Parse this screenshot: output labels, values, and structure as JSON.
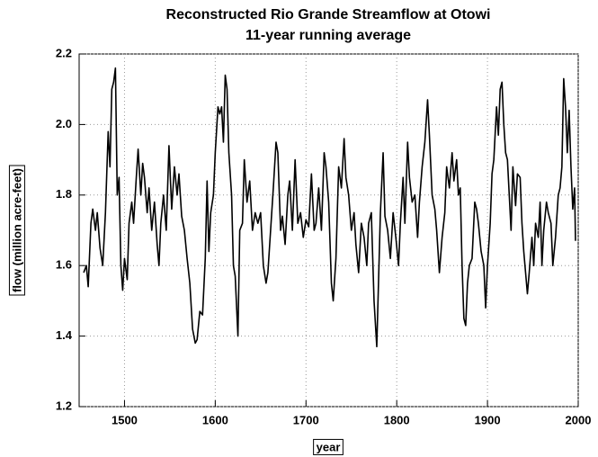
{
  "chart_data": {
    "type": "line",
    "title": "Reconstructed Rio Grande Streamflow at Otowi",
    "subtitle": "11-year running average",
    "xlabel": "year",
    "ylabel": "flow  (million acre-feet)",
    "color": "#000000",
    "grid": true,
    "xlim": [
      1450,
      2000
    ],
    "xticks": [
      1500,
      1600,
      1700,
      1800,
      1900,
      2000
    ],
    "ylim": [
      1.2,
      2.2
    ],
    "yticks": [
      1.2,
      1.4,
      1.6,
      1.8,
      {
        "value": 2,
        "label": "2.0"
      },
      2.2
    ],
    "x": [
      1455,
      1458,
      1460,
      1463,
      1465,
      1468,
      1470,
      1473,
      1476,
      1479,
      1482,
      1484,
      1486,
      1488,
      1490,
      1492,
      1494,
      1496,
      1498,
      1500,
      1503,
      1505,
      1508,
      1510,
      1513,
      1515,
      1518,
      1520,
      1522,
      1525,
      1527,
      1530,
      1533,
      1536,
      1538,
      1540,
      1543,
      1546,
      1549,
      1552,
      1555,
      1558,
      1560,
      1563,
      1566,
      1569,
      1572,
      1575,
      1578,
      1580,
      1583,
      1586,
      1589,
      1591,
      1593,
      1595,
      1598,
      1600,
      1603,
      1605,
      1607,
      1609,
      1611,
      1613,
      1615,
      1618,
      1620,
      1622,
      1625,
      1627,
      1630,
      1632,
      1635,
      1638,
      1641,
      1644,
      1647,
      1650,
      1653,
      1656,
      1658,
      1661,
      1664,
      1667,
      1669,
      1672,
      1674,
      1677,
      1680,
      1682,
      1685,
      1688,
      1691,
      1694,
      1697,
      1700,
      1703,
      1706,
      1709,
      1711,
      1714,
      1717,
      1720,
      1722,
      1725,
      1728,
      1730,
      1733,
      1736,
      1739,
      1742,
      1744,
      1747,
      1750,
      1753,
      1755,
      1758,
      1761,
      1764,
      1767,
      1769,
      1772,
      1775,
      1778,
      1780,
      1782,
      1785,
      1787,
      1790,
      1793,
      1796,
      1799,
      1802,
      1804,
      1807,
      1809,
      1812,
      1814,
      1817,
      1820,
      1823,
      1825,
      1828,
      1831,
      1834,
      1836,
      1839,
      1842,
      1844,
      1847,
      1850,
      1853,
      1855,
      1858,
      1861,
      1863,
      1866,
      1868,
      1870,
      1872,
      1874,
      1876,
      1878,
      1880,
      1883,
      1886,
      1888,
      1890,
      1893,
      1896,
      1898,
      1900,
      1903,
      1905,
      1907,
      1910,
      1912,
      1914,
      1916,
      1918,
      1920,
      1922,
      1924,
      1926,
      1928,
      1931,
      1933,
      1936,
      1938,
      1940,
      1942,
      1944,
      1946,
      1949,
      1951,
      1953,
      1956,
      1958,
      1960,
      1962,
      1965,
      1967,
      1970,
      1972,
      1975,
      1978,
      1980,
      1982,
      1984,
      1986,
      1988,
      1990,
      1992,
      1994,
      1996,
      1997
    ],
    "values": [
      1.58,
      1.6,
      1.54,
      1.72,
      1.76,
      1.7,
      1.75,
      1.65,
      1.6,
      1.75,
      1.98,
      1.88,
      2.1,
      2.12,
      2.16,
      1.8,
      1.85,
      1.6,
      1.53,
      1.62,
      1.56,
      1.72,
      1.78,
      1.72,
      1.85,
      1.93,
      1.8,
      1.89,
      1.85,
      1.75,
      1.82,
      1.7,
      1.78,
      1.66,
      1.6,
      1.72,
      1.8,
      1.7,
      1.94,
      1.76,
      1.88,
      1.8,
      1.86,
      1.74,
      1.7,
      1.62,
      1.55,
      1.42,
      1.38,
      1.39,
      1.47,
      1.46,
      1.62,
      1.84,
      1.64,
      1.75,
      1.8,
      1.92,
      2.05,
      2.03,
      2.05,
      1.95,
      2.14,
      2.1,
      1.92,
      1.8,
      1.6,
      1.57,
      1.4,
      1.7,
      1.72,
      1.9,
      1.78,
      1.84,
      1.7,
      1.75,
      1.72,
      1.75,
      1.6,
      1.55,
      1.58,
      1.7,
      1.82,
      1.95,
      1.92,
      1.7,
      1.74,
      1.66,
      1.8,
      1.84,
      1.7,
      1.9,
      1.72,
      1.75,
      1.68,
      1.73,
      1.71,
      1.86,
      1.7,
      1.72,
      1.82,
      1.7,
      1.92,
      1.88,
      1.78,
      1.55,
      1.5,
      1.62,
      1.88,
      1.82,
      1.96,
      1.85,
      1.8,
      1.7,
      1.75,
      1.66,
      1.58,
      1.72,
      1.68,
      1.6,
      1.72,
      1.75,
      1.5,
      1.37,
      1.56,
      1.75,
      1.92,
      1.74,
      1.7,
      1.62,
      1.75,
      1.68,
      1.6,
      1.72,
      1.85,
      1.72,
      1.95,
      1.85,
      1.78,
      1.8,
      1.68,
      1.78,
      1.88,
      1.95,
      2.07,
      1.97,
      1.8,
      1.76,
      1.7,
      1.58,
      1.68,
      1.75,
      1.88,
      1.82,
      1.92,
      1.84,
      1.9,
      1.8,
      1.82,
      1.6,
      1.45,
      1.43,
      1.55,
      1.6,
      1.62,
      1.78,
      1.76,
      1.72,
      1.64,
      1.6,
      1.48,
      1.6,
      1.72,
      1.86,
      1.9,
      2.05,
      1.97,
      2.1,
      2.12,
      2.0,
      1.92,
      1.9,
      1.8,
      1.7,
      1.88,
      1.77,
      1.86,
      1.85,
      1.72,
      1.64,
      1.58,
      1.52,
      1.58,
      1.68,
      1.6,
      1.72,
      1.68,
      1.78,
      1.6,
      1.7,
      1.78,
      1.75,
      1.72,
      1.6,
      1.68,
      1.8,
      1.82,
      1.88,
      2.13,
      2.05,
      1.92,
      2.04,
      1.88,
      1.76,
      1.82,
      1.67
    ]
  }
}
